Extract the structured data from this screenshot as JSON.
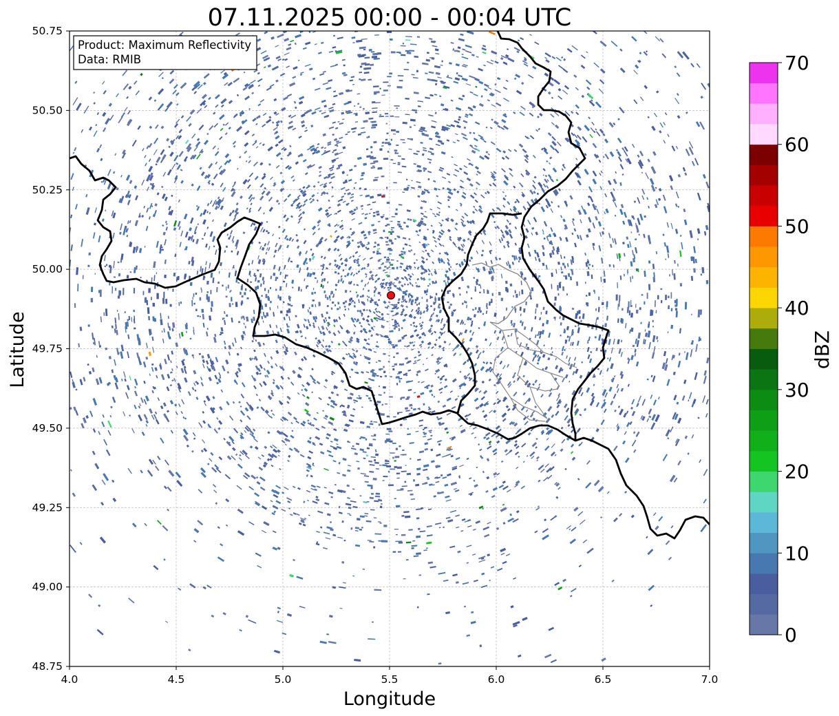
{
  "title": "07.11.2025 00:00 - 00:04 UTC",
  "info_box": {
    "product": "Product: Maximum Reflectivity",
    "data_source": "Data: RMIB"
  },
  "radar_site": {
    "lon": 5.505,
    "lat": 49.915,
    "color": "#ee1111"
  },
  "chart_data": {
    "type": "heatmap",
    "title": "07.11.2025 00:00 - 00:04 UTC",
    "xlabel": "Longitude",
    "ylabel": "Latitude",
    "xlim": [
      4.0,
      7.0
    ],
    "ylim": [
      48.75,
      50.75
    ],
    "x_ticks": [
      "4.0",
      "4.5",
      "5.0",
      "5.5",
      "6.0",
      "6.5",
      "7.0"
    ],
    "y_ticks": [
      "48.75",
      "49.00",
      "49.25",
      "49.50",
      "49.75",
      "50.00",
      "50.25",
      "50.50",
      "50.75"
    ],
    "grid": true,
    "colorbar": {
      "label": "dBZ",
      "range": [
        0,
        70
      ],
      "ticks": [
        "0",
        "10",
        "20",
        "30",
        "40",
        "50",
        "60",
        "70"
      ],
      "colors": [
        "#6677a8",
        "#566aa2",
        "#4a5e9f",
        "#4878b0",
        "#4f96c0",
        "#5cb8d6",
        "#5fd6c4",
        "#3ed66f",
        "#14c420",
        "#11b01a",
        "#0f9f16",
        "#0d8c14",
        "#0a7512",
        "#075d0d",
        "#477a0c",
        "#acac0b",
        "#fbd600",
        "#fcb400",
        "#fd9800",
        "#fd7a00",
        "#e80000",
        "#c80000",
        "#a40000",
        "#7c0000",
        "#ffd9ff",
        "#ffb0ff",
        "#ff75ff",
        "#ee33ee"
      ]
    },
    "dominant_echo_dbz": [
      0,
      10
    ],
    "scattered_echo_dbz": [
      10,
      30
    ],
    "isolated_echo_dbz": [
      40,
      50
    ]
  },
  "borders": {
    "country_color": "#000000",
    "province_color": "#888888"
  }
}
